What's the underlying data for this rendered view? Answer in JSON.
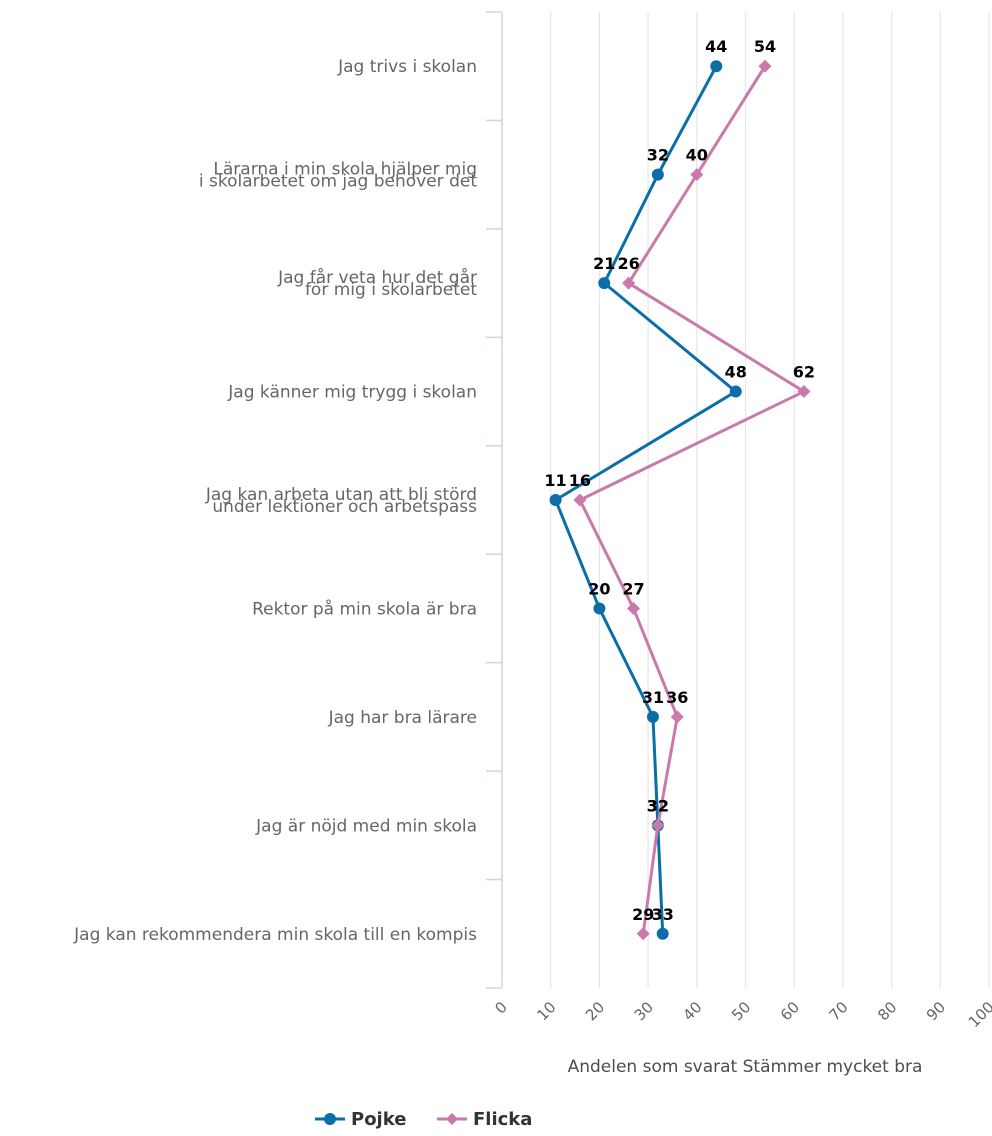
{
  "chart_data": {
    "type": "line",
    "orientation": "horizontal",
    "categories": [
      [
        "Jag trivs i skolan"
      ],
      [
        "Lärarna i min skola hjälper mig",
        "i skolarbetet om jag behöver det"
      ],
      [
        "Jag får veta hur det går",
        "för mig i skolarbetet"
      ],
      [
        "Jag känner mig trygg i skolan"
      ],
      [
        "Jag kan arbeta utan att bli störd",
        "under lektioner och arbetspass"
      ],
      [
        "Rektor på min skola är bra"
      ],
      [
        "Jag har bra lärare"
      ],
      [
        "Jag är nöjd med min skola"
      ],
      [
        "Jag kan rekommendera min skola till en kompis"
      ]
    ],
    "series": [
      {
        "name": "Pojke",
        "color": "#0b6ea8",
        "marker": "circle",
        "values": [
          44,
          32,
          21,
          48,
          11,
          20,
          31,
          32,
          33
        ]
      },
      {
        "name": "Flicka",
        "color": "#c97aab",
        "marker": "diamond",
        "values": [
          54,
          40,
          26,
          62,
          16,
          27,
          36,
          32,
          29
        ]
      }
    ],
    "value_axis": {
      "label": "Andelen som svarat Stämmer mycket bra",
      "ticks": [
        "0",
        "10",
        "20",
        "30",
        "40",
        "50",
        "60",
        "70",
        "80",
        "90",
        "100"
      ],
      "range": [
        0,
        100
      ]
    },
    "grid": true,
    "legend_position": "bottom-left"
  }
}
